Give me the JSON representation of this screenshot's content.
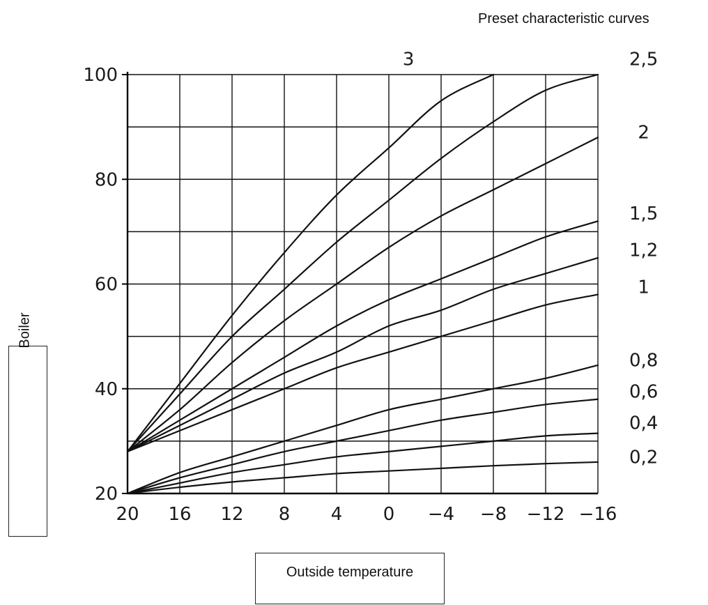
{
  "header_text": "Preset characteristic curves",
  "chart_data": {
    "type": "line",
    "xlabel": "Outside temperature",
    "ylabel": "Boiler",
    "xlim": [
      20,
      -16
    ],
    "ylim": [
      20,
      100
    ],
    "x_direction": "reversed",
    "x_ticks": [
      {
        "v": 20,
        "label": "20"
      },
      {
        "v": 16,
        "label": "16"
      },
      {
        "v": 12,
        "label": "12"
      },
      {
        "v": 8,
        "label": "8"
      },
      {
        "v": 4,
        "label": "4"
      },
      {
        "v": 0,
        "label": "0"
      },
      {
        "v": -4,
        "label": "−4"
      },
      {
        "v": -8,
        "label": "−8"
      },
      {
        "v": -12,
        "label": "−12"
      },
      {
        "v": -16,
        "label": "−16"
      }
    ],
    "y_ticks": [
      {
        "v": 20,
        "label": "20"
      },
      {
        "v": 40,
        "label": "40"
      },
      {
        "v": 60,
        "label": "60"
      },
      {
        "v": 80,
        "label": "80"
      },
      {
        "v": 100,
        "label": "100"
      }
    ],
    "grid": true,
    "grid_x_step": 4,
    "grid_y_step": 10,
    "x": [
      20,
      16,
      12,
      8,
      4,
      0,
      -4,
      -8,
      -12,
      -16
    ],
    "series": [
      {
        "name": "3",
        "values": [
          28,
          41,
          54,
          66,
          77,
          86,
          95,
          100,
          null,
          null
        ]
      },
      {
        "name": "2,5",
        "values": [
          28,
          39,
          50,
          59,
          68,
          76,
          84,
          91,
          97,
          100
        ]
      },
      {
        "name": "2",
        "values": [
          28,
          36,
          45,
          53,
          60,
          67,
          73,
          78,
          83,
          88
        ]
      },
      {
        "name": "1,5",
        "values": [
          28,
          34,
          40,
          46,
          52,
          57,
          61,
          65,
          69,
          72
        ]
      },
      {
        "name": "1,2",
        "values": [
          28,
          33,
          38,
          43,
          47,
          52,
          55,
          59,
          62,
          65
        ]
      },
      {
        "name": "1",
        "values": [
          28,
          32,
          36,
          40,
          44,
          47,
          50,
          53,
          56,
          58
        ]
      },
      {
        "name": "0,8",
        "values": [
          20,
          24,
          27,
          30,
          33,
          36,
          38,
          40,
          42,
          44.5
        ]
      },
      {
        "name": "0,6",
        "values": [
          20,
          23,
          25.5,
          28,
          30,
          32,
          34,
          35.5,
          37,
          38
        ]
      },
      {
        "name": "0,4",
        "values": [
          20,
          22,
          24,
          25.5,
          27,
          28,
          29,
          30,
          31,
          31.5
        ]
      },
      {
        "name": "0,2",
        "values": [
          20,
          21.2,
          22.2,
          23,
          23.8,
          24.3,
          24.8,
          25.3,
          25.7,
          26
        ]
      }
    ],
    "curve_labels": [
      {
        "text": "3",
        "x": -1.5,
        "y": 103
      },
      {
        "text": "2,5",
        "x": -19.5,
        "y": 103
      },
      {
        "text": "2",
        "x": -19.5,
        "y": 89
      },
      {
        "text": "1,5",
        "x": -19.5,
        "y": 73.5
      },
      {
        "text": "1,2",
        "x": -19.5,
        "y": 66.5
      },
      {
        "text": "1",
        "x": -19.5,
        "y": 59.5
      },
      {
        "text": "0,8",
        "x": -19.5,
        "y": 45.5
      },
      {
        "text": "0,6",
        "x": -19.5,
        "y": 39.5
      },
      {
        "text": "0,4",
        "x": -19.5,
        "y": 33.5
      },
      {
        "text": "0,2",
        "x": -19.5,
        "y": 27
      }
    ]
  }
}
